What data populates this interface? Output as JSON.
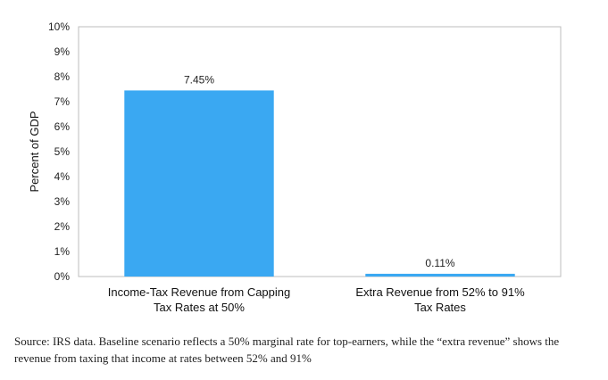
{
  "chart_data": {
    "type": "bar",
    "ylabel": "Percent of GDP",
    "ylim": [
      0,
      10
    ],
    "y_ticks": [
      "0%",
      "1%",
      "2%",
      "3%",
      "4%",
      "5%",
      "6%",
      "7%",
      "8%",
      "9%",
      "10%"
    ],
    "categories": [
      [
        "Income-Tax Revenue from Capping",
        "Tax Rates at 50%"
      ],
      [
        "Extra Revenue from 52% to 91%",
        "Tax Rates"
      ]
    ],
    "values": [
      7.45,
      0.11
    ],
    "data_labels": [
      "7.45%",
      "0.11%"
    ],
    "grid": false,
    "bar_color": "#3aa8f2"
  },
  "source_note": "Source: IRS data. Baseline scenario reflects a 50% marginal rate for top-earners, while the “extra revenue” shows the revenue from taxing that income at rates between 52% and 91%"
}
